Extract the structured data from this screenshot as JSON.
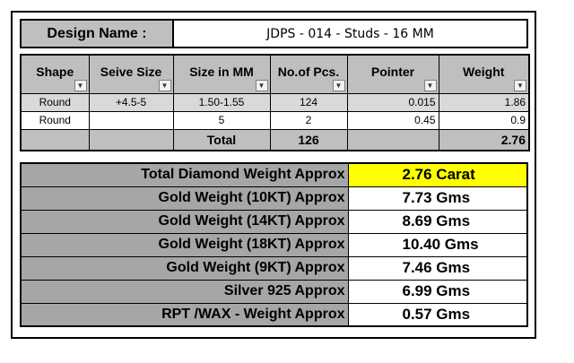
{
  "design": {
    "label": "Design Name :",
    "value": "JDPS - 014 - Studs - 16 MM"
  },
  "detail": {
    "headers": [
      "Shape",
      "Seive Size",
      "Size in MM",
      "No.of Pcs.",
      "Pointer",
      "Weight"
    ],
    "rows": [
      [
        "Round",
        "+4.5-5",
        "1.50-1.55",
        "124",
        "0.015",
        "1.86"
      ],
      [
        "Round",
        "",
        "5",
        "2",
        "0.45",
        "0.9"
      ]
    ],
    "total": {
      "label": "Total",
      "pcs": "126",
      "weight": "2.76"
    }
  },
  "summary": [
    {
      "label": "Total Diamond Weight Approx",
      "value": "2.76 Carat"
    },
    {
      "label": "Gold Weight (10KT) Approx",
      "value": "7.73 Gms"
    },
    {
      "label": "Gold Weight (14KT) Approx",
      "value": "8.69 Gms"
    },
    {
      "label": "Gold Weight (18KT) Approx",
      "value": "10.40 Gms"
    },
    {
      "label": "Gold Weight (9KT) Approx",
      "value": "7.46 Gms"
    },
    {
      "label": "Silver 925 Approx",
      "value": "6.99 Gms"
    },
    {
      "label": "RPT /WAX - Weight Approx",
      "value": "0.57 Gms"
    }
  ],
  "colors": {
    "header_gray": "#bfbfbf",
    "label_gray": "#a6a6a6",
    "highlight": "#ffff00"
  },
  "icons": {
    "filter_dropdown": "chevron-down-icon",
    "active_filter": "filter-icon"
  }
}
